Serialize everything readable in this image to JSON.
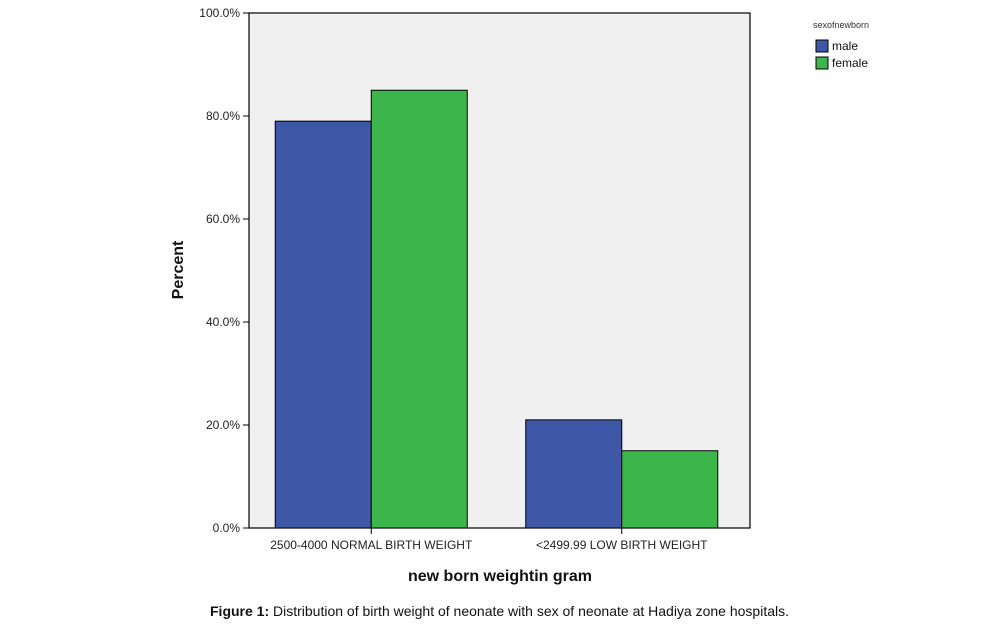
{
  "chart_data": {
    "type": "bar",
    "categories": [
      "2500-4000 NORMAL BIRTH WEIGHT",
      "<2499.99 LOW BIRTH WEIGHT"
    ],
    "series": [
      {
        "name": "male",
        "values": [
          79,
          21
        ],
        "color": "#3F57A7"
      },
      {
        "name": "female",
        "values": [
          85,
          15
        ],
        "color": "#3CB54A"
      }
    ],
    "xlabel": "new born weightin gram",
    "ylabel": "Percent",
    "ylim": [
      0,
      100
    ],
    "yticks": [
      "0.0%",
      "20.0%",
      "40.0%",
      "60.0%",
      "80.0%",
      "100.0%"
    ],
    "legend_title": "sexofnewborn",
    "legend_position": "top-right",
    "plot_background": "#F0F0F0",
    "grid": false
  },
  "caption": {
    "label": "Figure 1:",
    "text": " Distribution of birth weight of neonate with sex of neonate at Hadiya zone hospitals."
  }
}
